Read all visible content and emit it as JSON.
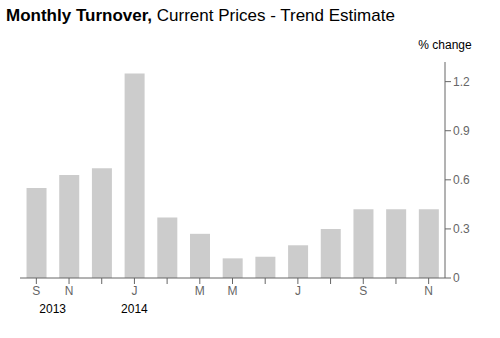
{
  "chart_data": {
    "type": "bar",
    "title": "Monthly Turnover,",
    "subtitle": "Current Prices - Trend Estimate",
    "ylabel": "% change",
    "categories": [
      "S",
      "N",
      null,
      "J",
      null,
      "M",
      "M",
      null,
      "J",
      null,
      "S",
      null,
      "N"
    ],
    "values": [
      0.55,
      0.63,
      0.67,
      1.25,
      0.37,
      0.27,
      0.12,
      0.13,
      0.2,
      0.3,
      0.42,
      0.42,
      0.42
    ],
    "color": "#cccccc",
    "ylim": [
      0,
      1.32
    ],
    "yticks": [
      0,
      0.3,
      0.6,
      0.9,
      1.2
    ],
    "grid": false,
    "annotations": [
      "2013",
      "2014"
    ]
  }
}
